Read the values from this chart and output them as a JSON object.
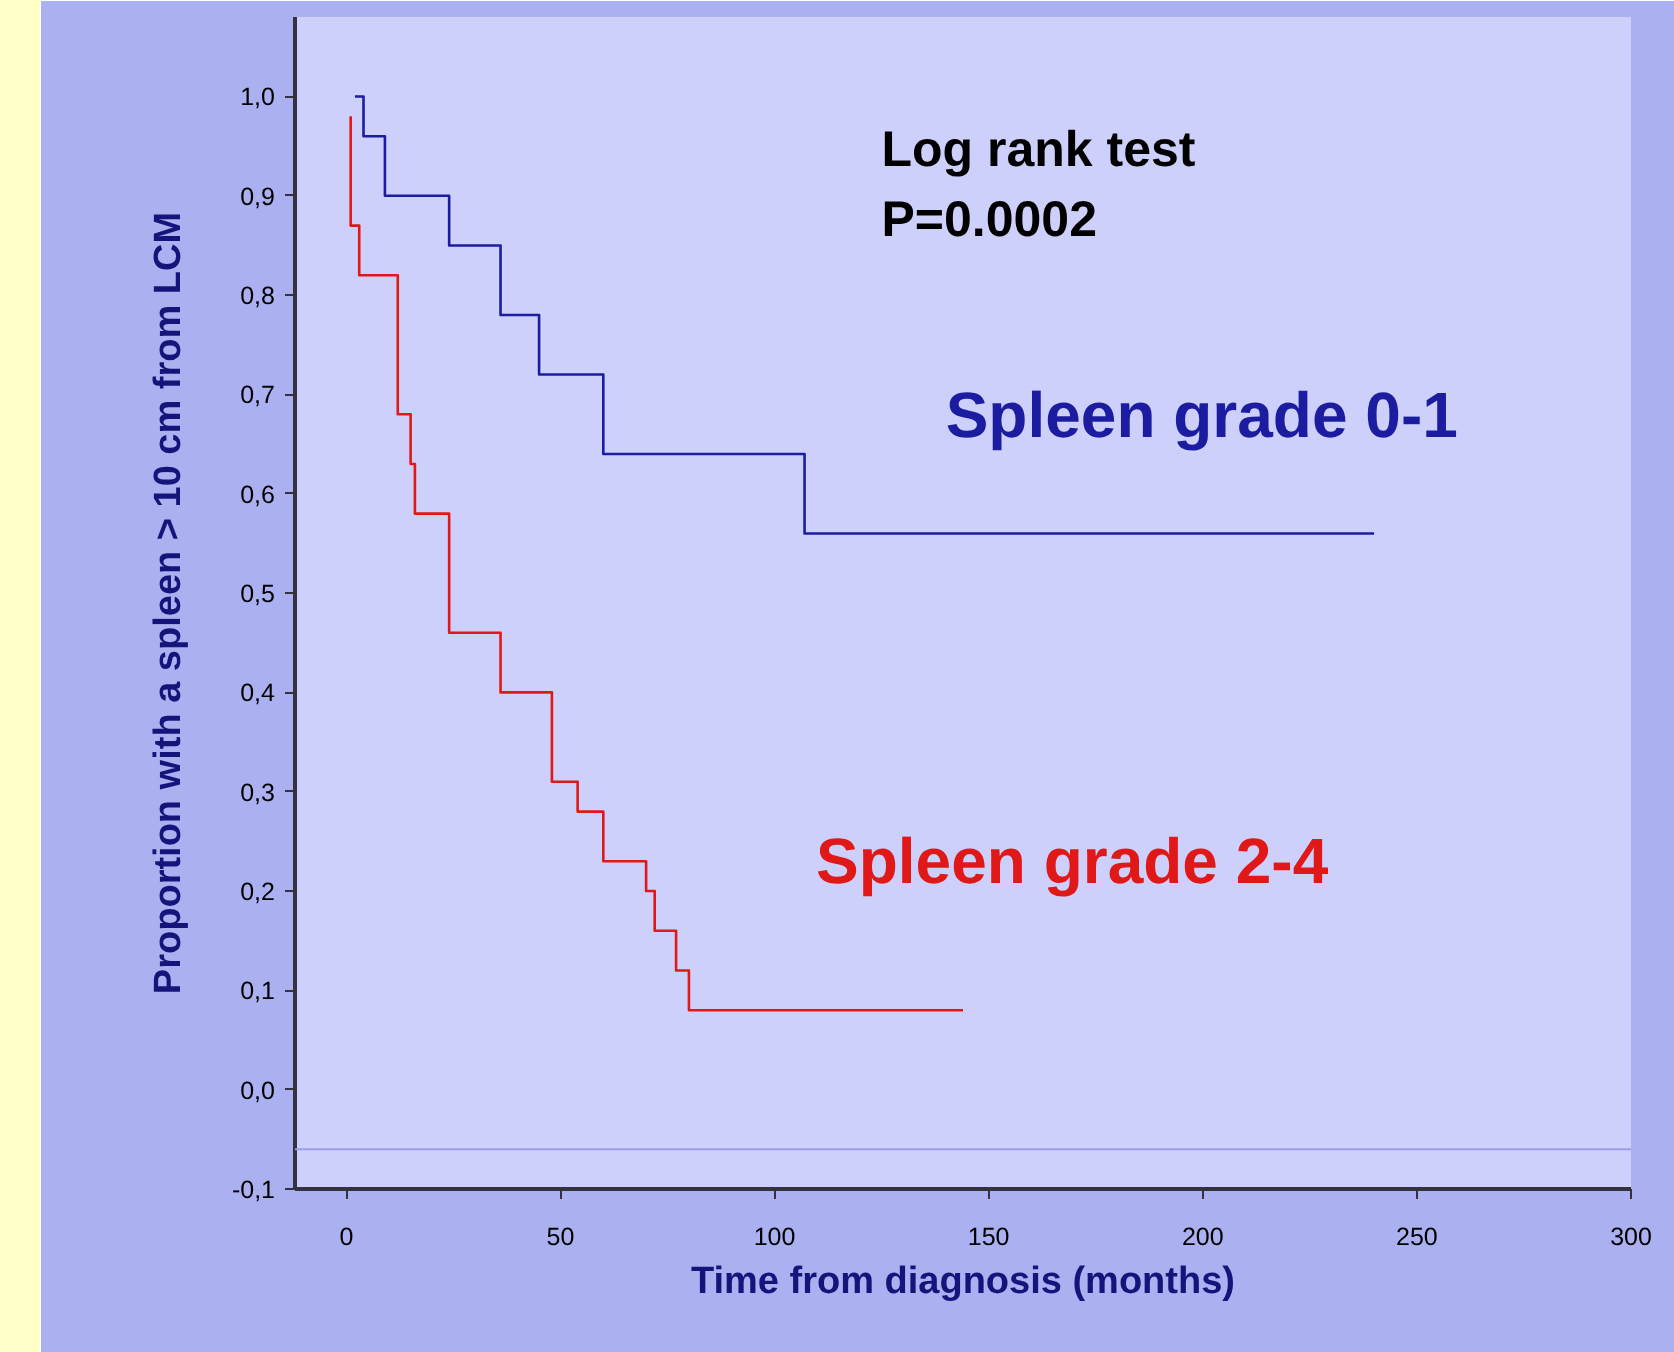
{
  "chart_data": {
    "type": "step",
    "xlabel": "Time from diagnosis (months)",
    "ylabel": "Proportion with a spleen > 10 cm from LCM",
    "annotations": [
      "Log rank test",
      "P=0.0002"
    ],
    "series": [
      {
        "name": "Spleen grade 0-1",
        "color": "#1c1ca0",
        "x": [
          2,
          4,
          9,
          24,
          36,
          45,
          60,
          107,
          240
        ],
        "values": [
          1.0,
          0.96,
          0.9,
          0.85,
          0.78,
          0.72,
          0.64,
          0.56,
          0.56
        ]
      },
      {
        "name": "Spleen grade 2-4",
        "color": "#e01818",
        "x": [
          1,
          1,
          3,
          12,
          15,
          16,
          24,
          36,
          48,
          54,
          60,
          70,
          72,
          77,
          80,
          144
        ],
        "values": [
          0.98,
          0.87,
          0.82,
          0.68,
          0.63,
          0.58,
          0.46,
          0.4,
          0.31,
          0.28,
          0.23,
          0.2,
          0.16,
          0.12,
          0.08,
          0.08
        ]
      }
    ],
    "xlim": [
      -12,
      300
    ],
    "ylim": [
      -0.1,
      1.08
    ],
    "xticks": [
      0,
      50,
      100,
      150,
      200,
      250,
      300
    ],
    "yticks": [
      {
        "value": -0.1,
        "label": "-0,1"
      },
      {
        "value": 0.0,
        "label": "0,0"
      },
      {
        "value": 0.1,
        "label": "0,1"
      },
      {
        "value": 0.2,
        "label": "0,2"
      },
      {
        "value": 0.3,
        "label": "0,3"
      },
      {
        "value": 0.4,
        "label": "0,4"
      },
      {
        "value": 0.5,
        "label": "0,5"
      },
      {
        "value": 0.6,
        "label": "0,6"
      },
      {
        "value": 0.7,
        "label": "0,7"
      },
      {
        "value": 0.8,
        "label": "0,8"
      },
      {
        "value": 0.9,
        "label": "0,9"
      },
      {
        "value": 1.0,
        "label": "1,0"
      }
    ],
    "ref_lines": [
      {
        "axis": "y",
        "value": -0.06,
        "color": "#9a9ee8"
      }
    ],
    "grid": false,
    "marker": "none",
    "line_style": "solid"
  }
}
